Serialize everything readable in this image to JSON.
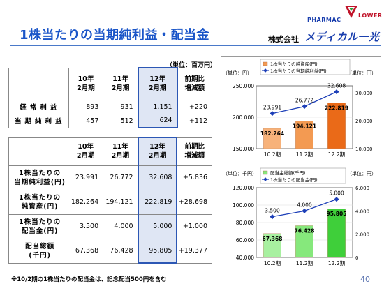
{
  "header": {
    "title": "1株当たりの当期純利益・配当金",
    "company_prefix": "株式会社",
    "company_brand": "メディカル一光",
    "logo_left": "PHARMAC",
    "logo_right": "LOWER"
  },
  "unit_label": "（単位：百万円）",
  "table1": {
    "headers": [
      {
        "line1": "10年",
        "line2": "2月期"
      },
      {
        "line1": "11年",
        "line2": "2月期"
      },
      {
        "line1": "12年",
        "line2": "2月期"
      },
      {
        "line1": "前期比",
        "line2": "増減額"
      }
    ],
    "rows": [
      {
        "label": "経常利益",
        "values": [
          "893",
          "931",
          "1.151",
          "+220"
        ]
      },
      {
        "label": "当期純利益",
        "values": [
          "457",
          "512",
          "624",
          "+112"
        ]
      }
    ]
  },
  "table2": {
    "headers": [
      {
        "line1": "10年",
        "line2": "2月期"
      },
      {
        "line1": "11年",
        "line2": "2月期"
      },
      {
        "line1": "12年",
        "line2": "2月期"
      },
      {
        "line1": "前期比",
        "line2": "増減額"
      }
    ],
    "rows": [
      {
        "label1": "1株当たりの",
        "label2": "当期純利益(円)",
        "values": [
          "23.991",
          "26.772",
          "32.608",
          "+5.836"
        ]
      },
      {
        "label1": "1株当たりの",
        "label2": "純資産(円)",
        "values": [
          "182.264",
          "194.121",
          "222.819",
          "+28.698"
        ]
      },
      {
        "label1": "1株当たりの",
        "label2": "配当金(円)",
        "values": [
          "3.500",
          "4.000",
          "5.000",
          "+1.000"
        ]
      },
      {
        "label1": "配当総額",
        "label2": "(千円)",
        "values": [
          "67.368",
          "76.428",
          "95.805",
          "+19.377"
        ]
      }
    ]
  },
  "footnote": "※10/2期の1株当たりの配当金は、記念配当500円を含む",
  "page_number": "40",
  "chart_data": [
    {
      "type": "bar",
      "categories": [
        "10.2期",
        "11.2期",
        "12.2期"
      ],
      "left_unit": "（単位：円）",
      "right_unit": "（単位：円）",
      "left_ticks": [
        "250.000",
        "200.000",
        "150.000"
      ],
      "right_ticks": [
        "30.000",
        "20.000",
        "10.000"
      ],
      "ylim": [
        150000,
        250000
      ],
      "y2lim": [
        10000,
        35000
      ],
      "series": [
        {
          "name": "1株当たりの純資産(円)",
          "kind": "bar",
          "values": [
            182264,
            194121,
            222819
          ],
          "labels": [
            "182.264",
            "194.121",
            "222.819"
          ],
          "colors": [
            "#f7b27a",
            "#f39a52",
            "#ea6a18"
          ]
        },
        {
          "name": "1株当たりの当期純利益(円)",
          "kind": "line",
          "axis": "right",
          "values": [
            23991,
            26772,
            32608
          ],
          "labels": [
            "23.991",
            "26.772",
            "32.608"
          ],
          "color": "#1d3fb8"
        }
      ]
    },
    {
      "type": "bar",
      "categories": [
        "10.2期",
        "11.2期",
        "12.2期"
      ],
      "left_unit": "（単位：千円）",
      "right_unit": "（単位：円）",
      "left_ticks": [
        "120.000",
        "100.000",
        "80.000",
        "60.000",
        "40.000"
      ],
      "right_ticks": [
        "6.000",
        "4.000",
        "2.000",
        "0"
      ],
      "ylim": [
        40000,
        120000
      ],
      "y2lim": [
        0,
        6000
      ],
      "series": [
        {
          "name": "配当金総額(千円)",
          "kind": "bar",
          "values": [
            67368,
            76428,
            95805
          ],
          "labels": [
            "67.368",
            "76.428",
            "95.805"
          ],
          "colors": [
            "#a8f0a0",
            "#86e87c",
            "#3fcf3a"
          ]
        },
        {
          "name": "1株当たりの配当金(円)",
          "kind": "line",
          "axis": "right",
          "values": [
            3500,
            4000,
            5000
          ],
          "labels": [
            "3.500",
            "4.000",
            "5.000"
          ],
          "color": "#1d3fb8"
        }
      ]
    }
  ]
}
